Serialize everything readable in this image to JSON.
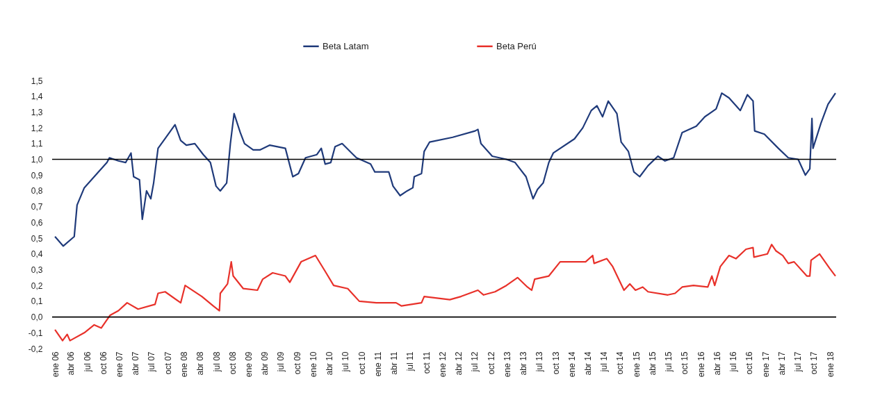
{
  "chart_data": {
    "type": "line",
    "legend": "top",
    "grid": false,
    "ylim": [
      -0.2,
      1.5
    ],
    "yticks": [
      {
        "value": -0.2,
        "label": "-0,2"
      },
      {
        "value": -0.1,
        "label": "-0,1"
      },
      {
        "value": 0,
        "label": "0,0"
      },
      {
        "value": 0.1,
        "label": "0,1"
      },
      {
        "value": 0.2,
        "label": "0,2"
      },
      {
        "value": 0.3,
        "label": "0,3"
      },
      {
        "value": 0.4,
        "label": "0,4"
      },
      {
        "value": 0.5,
        "label": "0,5"
      },
      {
        "value": 0.6,
        "label": "0,6"
      },
      {
        "value": 0.7,
        "label": "0,7"
      },
      {
        "value": 0.8,
        "label": "0,8"
      },
      {
        "value": 0.9,
        "label": "0,9"
      },
      {
        "value": 1.0,
        "label": "1,0"
      },
      {
        "value": 1.1,
        "label": "1,1"
      },
      {
        "value": 1.2,
        "label": "1,2"
      },
      {
        "value": 1.3,
        "label": "1,3"
      },
      {
        "value": 1.4,
        "label": "1,4"
      },
      {
        "value": 1.5,
        "label": "1,5"
      }
    ],
    "xlim": [
      "2005-12-16",
      "2018-02-05"
    ],
    "xticks": [
      {
        "value": "2006-01-01",
        "label": "ene 06"
      },
      {
        "value": "2006-04-01",
        "label": "abr 06"
      },
      {
        "value": "2006-07-01",
        "label": "jul 06"
      },
      {
        "value": "2006-10-01",
        "label": "oct 06"
      },
      {
        "value": "2007-01-01",
        "label": "ene 07"
      },
      {
        "value": "2007-04-01",
        "label": "abr 07"
      },
      {
        "value": "2007-07-01",
        "label": "jul 07"
      },
      {
        "value": "2007-10-01",
        "label": "oct 07"
      },
      {
        "value": "2008-01-01",
        "label": "ene 08"
      },
      {
        "value": "2008-04-01",
        "label": "abr 08"
      },
      {
        "value": "2008-07-01",
        "label": "jul 08"
      },
      {
        "value": "2008-10-01",
        "label": "oct 08"
      },
      {
        "value": "2009-01-01",
        "label": "ene 09"
      },
      {
        "value": "2009-04-01",
        "label": "abr 09"
      },
      {
        "value": "2009-07-01",
        "label": "jul 09"
      },
      {
        "value": "2009-10-01",
        "label": "oct 09"
      },
      {
        "value": "2010-01-01",
        "label": "ene 10"
      },
      {
        "value": "2010-04-01",
        "label": "abr 10"
      },
      {
        "value": "2010-07-01",
        "label": "jul 10"
      },
      {
        "value": "2010-10-01",
        "label": "oct 10"
      },
      {
        "value": "2011-01-01",
        "label": "ene 11"
      },
      {
        "value": "2011-04-01",
        "label": "abr 11"
      },
      {
        "value": "2011-07-01",
        "label": "jul 11"
      },
      {
        "value": "2011-10-01",
        "label": "oct 11"
      },
      {
        "value": "2012-01-01",
        "label": "ene 12"
      },
      {
        "value": "2012-04-01",
        "label": "abr 12"
      },
      {
        "value": "2012-07-01",
        "label": "jul 12"
      },
      {
        "value": "2012-10-01",
        "label": "oct 12"
      },
      {
        "value": "2013-01-01",
        "label": "ene 13"
      },
      {
        "value": "2013-04-01",
        "label": "abr 13"
      },
      {
        "value": "2013-07-01",
        "label": "jul 13"
      },
      {
        "value": "2013-10-01",
        "label": "oct 13"
      },
      {
        "value": "2014-01-01",
        "label": "ene 14"
      },
      {
        "value": "2014-04-01",
        "label": "abr 14"
      },
      {
        "value": "2014-07-01",
        "label": "jul 14"
      },
      {
        "value": "2014-10-01",
        "label": "oct 14"
      },
      {
        "value": "2015-01-01",
        "label": "ene 15"
      },
      {
        "value": "2015-04-01",
        "label": "abr 15"
      },
      {
        "value": "2015-07-01",
        "label": "jul 15"
      },
      {
        "value": "2015-10-01",
        "label": "oct 15"
      },
      {
        "value": "2016-01-01",
        "label": "ene 16"
      },
      {
        "value": "2016-04-01",
        "label": "abr 16"
      },
      {
        "value": "2016-07-01",
        "label": "jul 16"
      },
      {
        "value": "2016-10-01",
        "label": "oct 16"
      },
      {
        "value": "2017-01-01",
        "label": "ene 17"
      },
      {
        "value": "2017-04-01",
        "label": "abr 17"
      },
      {
        "value": "2017-07-01",
        "label": "jul 17"
      },
      {
        "value": "2017-10-01",
        "label": "oct 17"
      },
      {
        "value": "2018-01-01",
        "label": "ene 18"
      }
    ],
    "ref_lines": [
      {
        "axis": "y",
        "value": 1.0,
        "color": "#000000"
      },
      {
        "axis": "y",
        "value": 0.0,
        "color": "#000000"
      }
    ],
    "series": [
      {
        "name": "Beta Latam",
        "color": "#1f3a7a",
        "x": [
          "2006-01-01",
          "2006-02-17",
          "2006-04-20",
          "2006-05-06",
          "2006-06-16",
          "2006-08-11",
          "2006-10-22",
          "2006-11-05",
          "2006-12-26",
          "2007-02-05",
          "2007-03-07",
          "2007-03-22",
          "2007-04-24",
          "2007-05-10",
          "2007-06-03",
          "2007-06-27",
          "2007-07-13",
          "2007-08-07",
          "2007-09-08",
          "2007-11-11",
          "2007-12-13",
          "2008-01-14",
          "2008-03-02",
          "2008-04-19",
          "2008-05-29",
          "2008-06-30",
          "2008-07-24",
          "2008-08-29",
          "2008-09-19",
          "2008-10-10",
          "2008-11-14",
          "2008-12-08",
          "2009-01-26",
          "2009-03-05",
          "2009-04-30",
          "2009-07-27",
          "2009-09-07",
          "2009-10-09",
          "2009-11-18",
          "2010-01-21",
          "2010-02-15",
          "2010-03-09",
          "2010-04-10",
          "2010-05-04",
          "2010-06-13",
          "2010-09-02",
          "2010-11-21",
          "2010-12-15",
          "2011-03-04",
          "2011-03-28",
          "2011-05-07",
          "2011-06-16",
          "2011-07-18",
          "2011-07-26",
          "2011-09-05",
          "2011-09-20",
          "2011-10-21",
          "2012-02-28",
          "2012-07-04",
          "2012-07-20",
          "2012-08-06",
          "2012-10-09",
          "2012-12-28",
          "2013-02-15",
          "2013-04-18",
          "2013-05-28",
          "2013-06-22",
          "2013-07-24",
          "2013-08-25",
          "2013-09-19",
          "2014-01-17",
          "2014-03-05",
          "2014-04-22",
          "2014-05-24",
          "2014-06-25",
          "2014-07-27",
          "2014-09-14",
          "2014-10-08",
          "2014-11-18",
          "2014-12-19",
          "2015-01-21",
          "2015-03-09",
          "2015-05-04",
          "2015-06-13",
          "2015-08-01",
          "2015-09-18",
          "2015-12-07",
          "2016-01-24",
          "2016-03-28",
          "2016-04-29",
          "2016-06-09",
          "2016-08-12",
          "2016-09-21",
          "2016-10-23",
          "2016-11-01",
          "2016-12-26",
          "2017-03-15",
          "2017-05-10",
          "2017-07-05",
          "2017-08-15",
          "2017-09-09",
          "2017-09-21",
          "2017-09-27",
          "2017-11-11",
          "2017-12-21",
          "2018-02-01"
        ],
        "values": [
          0.51,
          0.45,
          0.51,
          0.71,
          0.82,
          0.89,
          0.98,
          1.01,
          0.99,
          0.98,
          1.04,
          0.89,
          0.87,
          0.62,
          0.8,
          0.75,
          0.85,
          1.07,
          1.12,
          1.22,
          1.12,
          1.09,
          1.1,
          1.03,
          0.98,
          0.83,
          0.8,
          0.85,
          1.1,
          1.29,
          1.17,
          1.1,
          1.06,
          1.06,
          1.09,
          1.07,
          0.89,
          0.91,
          1.01,
          1.03,
          1.07,
          0.97,
          0.98,
          1.08,
          1.1,
          1.01,
          0.97,
          0.92,
          0.92,
          0.83,
          0.77,
          0.8,
          0.82,
          0.89,
          0.91,
          1.05,
          1.11,
          1.14,
          1.18,
          1.19,
          1.1,
          1.02,
          1.0,
          0.98,
          0.89,
          0.75,
          0.81,
          0.85,
          0.98,
          1.04,
          1.13,
          1.2,
          1.31,
          1.34,
          1.27,
          1.37,
          1.29,
          1.11,
          1.05,
          0.92,
          0.89,
          0.96,
          1.02,
          0.99,
          1.01,
          1.17,
          1.21,
          1.27,
          1.32,
          1.42,
          1.39,
          1.31,
          1.41,
          1.37,
          1.18,
          1.16,
          1.07,
          1.01,
          1.0,
          0.9,
          0.94,
          1.26,
          1.07,
          1.23,
          1.35,
          1.42
        ]
      },
      {
        "name": "Beta Perú",
        "color": "#e8312a",
        "x": [
          "2006-01-01",
          "2006-02-13",
          "2006-03-11",
          "2006-03-27",
          "2006-06-16",
          "2006-08-11",
          "2006-09-20",
          "2006-11-08",
          "2006-12-26",
          "2007-02-13",
          "2007-04-16",
          "2007-07-21",
          "2007-08-07",
          "2007-09-16",
          "2007-12-13",
          "2008-01-07",
          "2008-04-11",
          "2008-06-14",
          "2008-07-19",
          "2008-07-24",
          "2008-09-03",
          "2008-09-24",
          "2008-10-05",
          "2008-12-01",
          "2009-02-19",
          "2009-03-21",
          "2009-05-16",
          "2009-07-27",
          "2009-08-21",
          "2009-10-24",
          "2010-01-13",
          "2010-03-09",
          "2010-04-26",
          "2010-07-15",
          "2010-09-18",
          "2010-12-23",
          "2011-04-14",
          "2011-05-15",
          "2011-09-05",
          "2011-09-20",
          "2012-02-12",
          "2012-04-15",
          "2012-07-20",
          "2012-08-21",
          "2012-10-25",
          "2012-12-28",
          "2013-03-01",
          "2013-04-26",
          "2013-05-20",
          "2013-06-06",
          "2013-08-25",
          "2013-10-28",
          "2014-01-02",
          "2014-03-21",
          "2014-04-30",
          "2014-05-08",
          "2014-07-19",
          "2014-08-21",
          "2014-10-24",
          "2014-11-26",
          "2014-12-28",
          "2015-02-07",
          "2015-03-09",
          "2015-06-29",
          "2015-08-09",
          "2015-09-18",
          "2015-11-21",
          "2016-02-10",
          "2016-03-04",
          "2016-03-20",
          "2016-04-21",
          "2016-06-09",
          "2016-07-18",
          "2016-09-13",
          "2016-10-23",
          "2016-10-28",
          "2017-01-12",
          "2017-02-05",
          "2017-03-01",
          "2017-04-09",
          "2017-05-10",
          "2017-06-12",
          "2017-08-23",
          "2017-09-09",
          "2017-09-16",
          "2017-11-03",
          "2017-12-29",
          "2018-02-01"
        ],
        "values": [
          -0.08,
          -0.15,
          -0.11,
          -0.15,
          -0.1,
          -0.05,
          -0.07,
          0.01,
          0.04,
          0.09,
          0.05,
          0.08,
          0.15,
          0.16,
          0.09,
          0.2,
          0.13,
          0.07,
          0.04,
          0.15,
          0.21,
          0.35,
          0.26,
          0.18,
          0.17,
          0.24,
          0.28,
          0.26,
          0.22,
          0.35,
          0.39,
          0.29,
          0.2,
          0.18,
          0.1,
          0.09,
          0.09,
          0.07,
          0.09,
          0.13,
          0.11,
          0.13,
          0.17,
          0.14,
          0.16,
          0.2,
          0.25,
          0.19,
          0.17,
          0.24,
          0.26,
          0.35,
          0.35,
          0.35,
          0.39,
          0.34,
          0.37,
          0.32,
          0.17,
          0.21,
          0.17,
          0.19,
          0.16,
          0.14,
          0.15,
          0.19,
          0.2,
          0.19,
          0.26,
          0.2,
          0.32,
          0.39,
          0.37,
          0.43,
          0.44,
          0.38,
          0.4,
          0.46,
          0.42,
          0.39,
          0.34,
          0.35,
          0.26,
          0.26,
          0.36,
          0.4,
          0.31,
          0.26
        ]
      }
    ]
  }
}
